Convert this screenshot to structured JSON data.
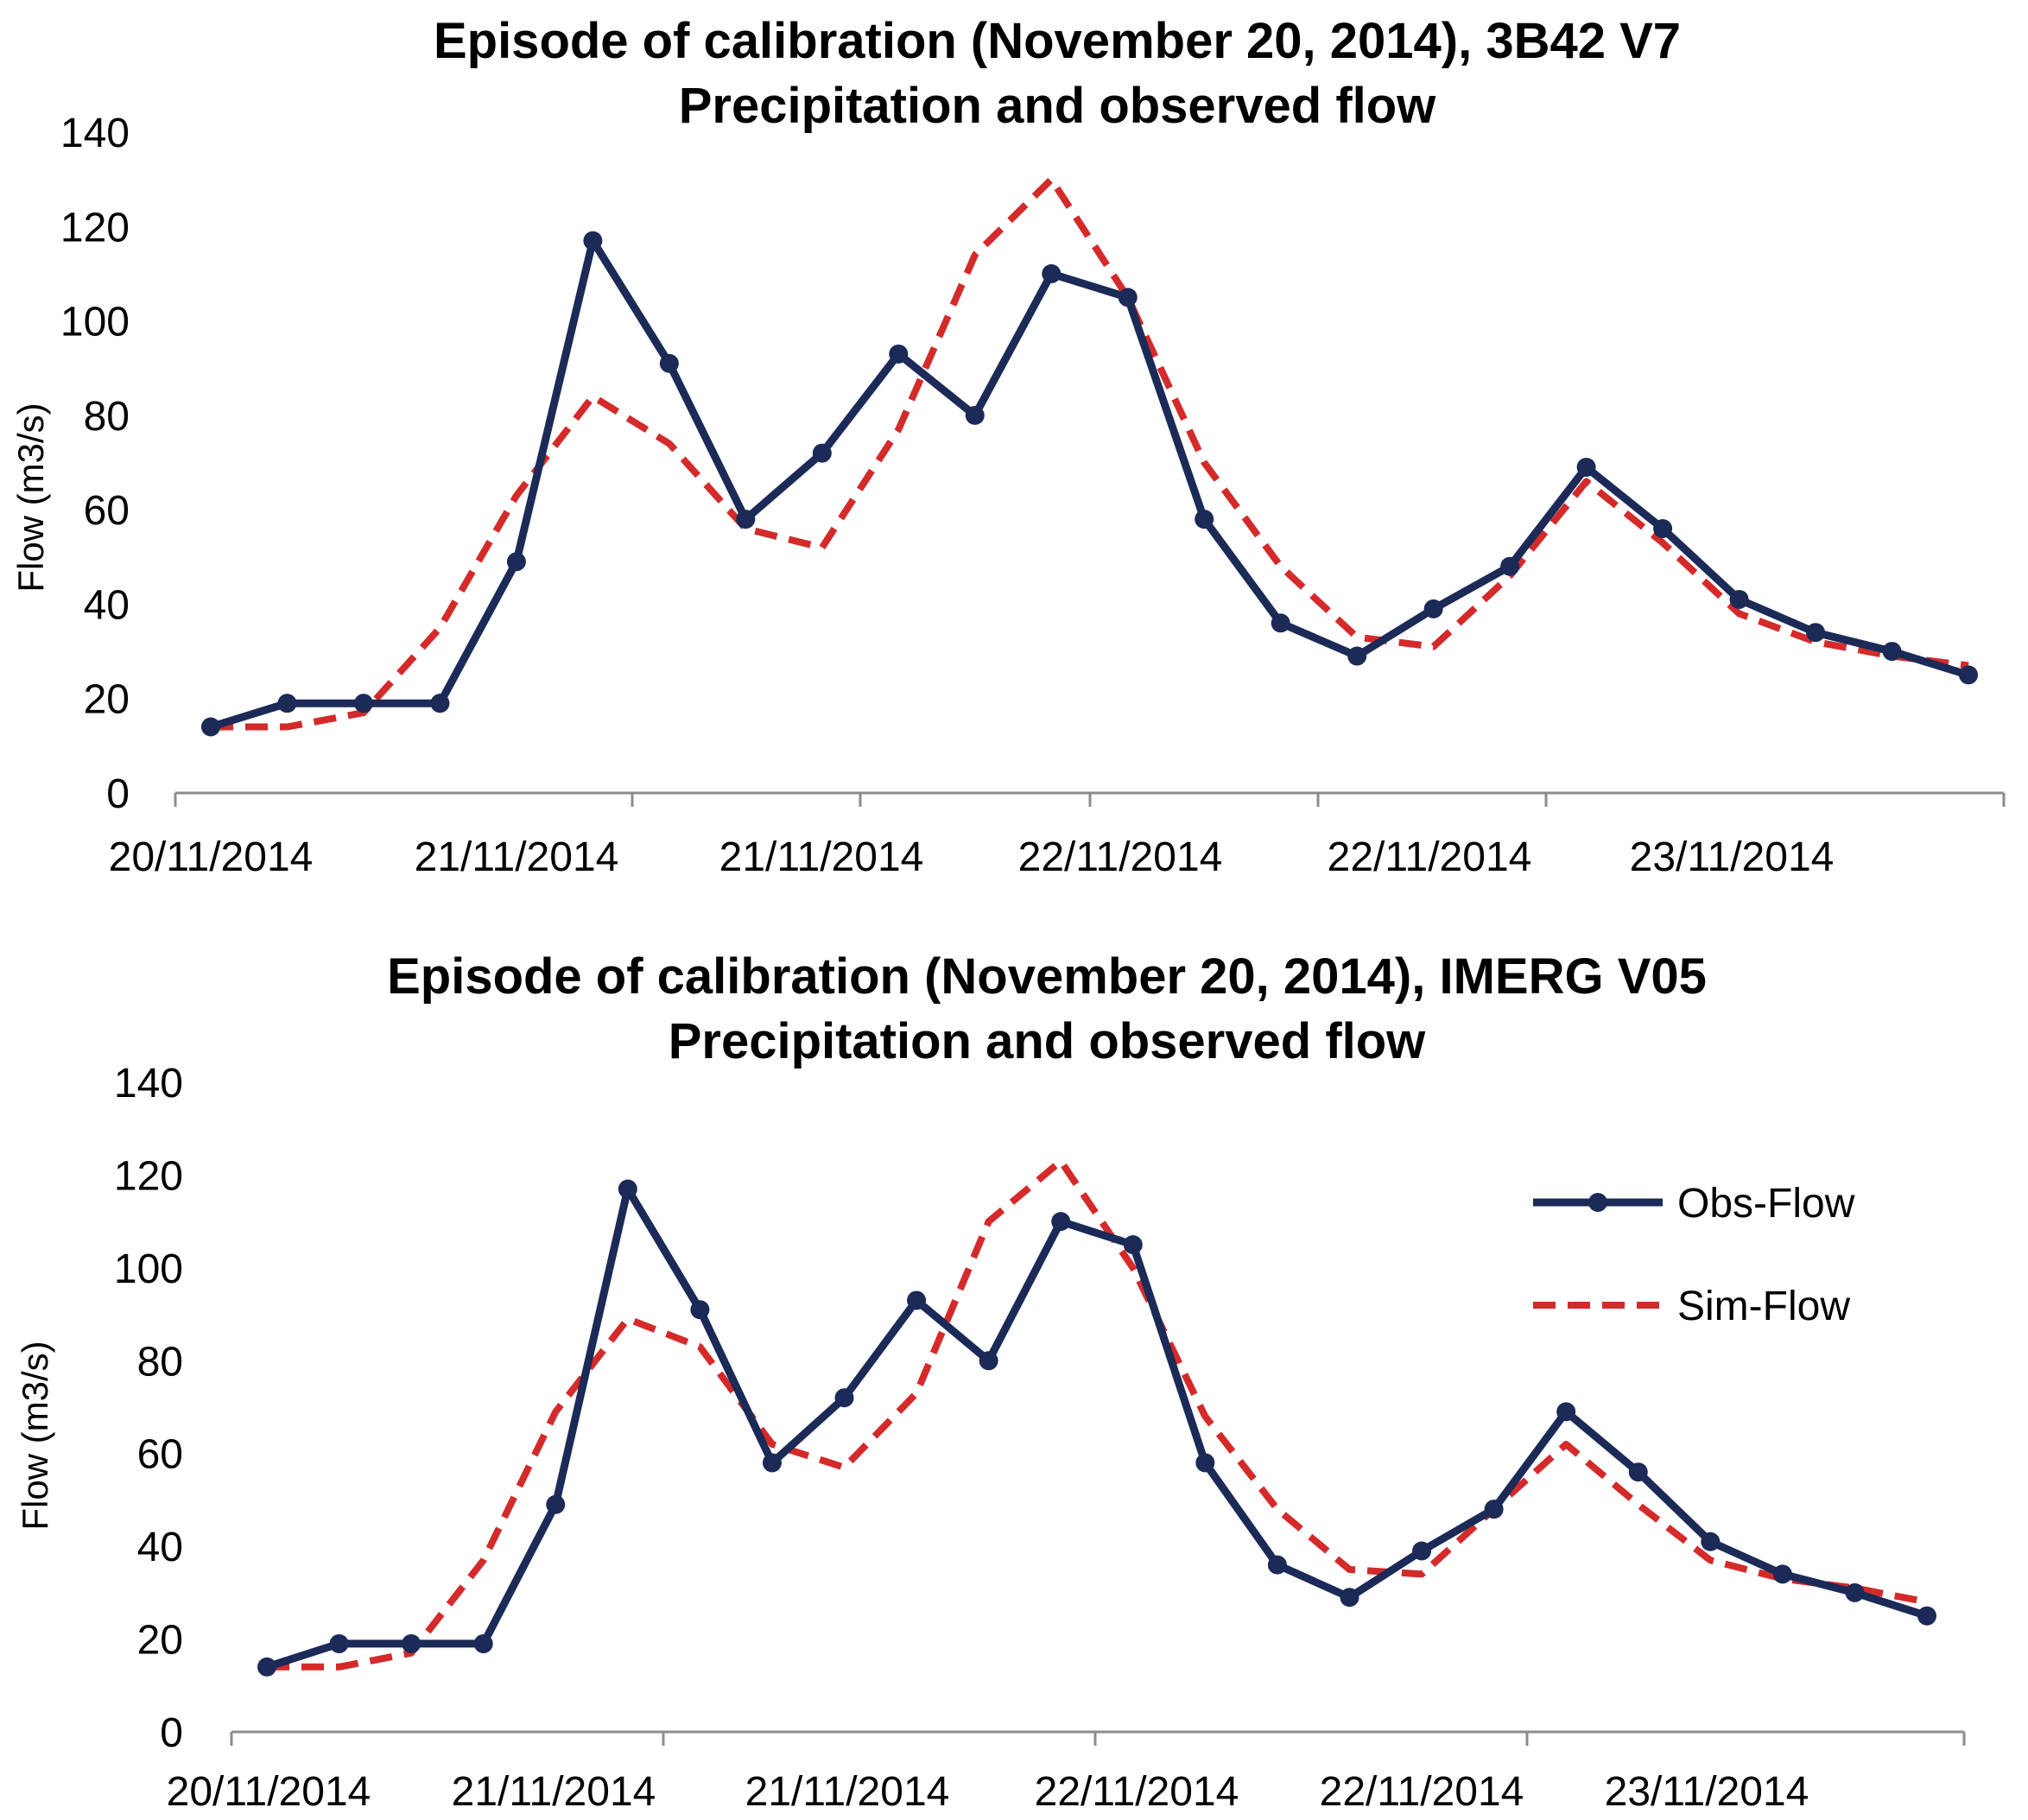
{
  "chart_data": [
    {
      "type": "line",
      "title_line1": "Episode of calibration (November 20, 2014), 3B42 V7",
      "title_line2": "Precipitation and observed flow",
      "xlabel": "",
      "ylabel": "Flow (m3/s)",
      "ylim": [
        0,
        140
      ],
      "yticks": [
        "0",
        "20",
        "40",
        "60",
        "80",
        "100",
        "120",
        "140"
      ],
      "x_tick_labels": [
        "20/11/2014",
        "21/11/2014",
        "21/11/2014",
        "22/11/2014",
        "22/11/2014",
        "23/11/2014"
      ],
      "grid": false,
      "series": [
        {
          "name": "Obs-Flow",
          "color": "#1b2a57",
          "style": "solid-markers",
          "values": [
            14,
            19,
            19,
            19,
            49,
            117,
            91,
            58,
            72,
            93,
            80,
            110,
            105,
            58,
            36,
            29,
            39,
            48,
            69,
            56,
            41,
            34,
            30,
            25
          ]
        },
        {
          "name": "Sim-Flow",
          "color": "#d42a2a",
          "style": "dashed",
          "values": [
            14,
            14,
            17,
            35,
            63,
            84,
            74,
            56,
            52,
            77,
            114,
            130,
            105,
            70,
            48,
            33,
            31,
            46,
            66,
            53,
            38,
            32,
            29,
            27
          ]
        }
      ]
    },
    {
      "type": "line",
      "title_line1": "Episode of calibration (November 20, 2014), IMERG V05",
      "title_line2": "Precipitation and observed flow",
      "xlabel": "",
      "ylabel": "Flow (m3/s)",
      "ylim": [
        0,
        140
      ],
      "yticks": [
        "0",
        "20",
        "40",
        "60",
        "80",
        "100",
        "120",
        "140"
      ],
      "x_tick_labels": [
        "20/11/2014",
        "21/11/2014",
        "21/11/2014",
        "22/11/2014",
        "22/11/2014",
        "23/11/2014"
      ],
      "grid": false,
      "legend_position": "top-right",
      "series": [
        {
          "name": "Obs-Flow",
          "color": "#1b2a57",
          "style": "solid-markers",
          "values": [
            14,
            19,
            19,
            19,
            49,
            117,
            91,
            58,
            72,
            93,
            80,
            110,
            105,
            58,
            36,
            29,
            39,
            48,
            69,
            56,
            41,
            34,
            30,
            25
          ]
        },
        {
          "name": "Sim-Flow",
          "color": "#d42a2a",
          "style": "dashed",
          "values": [
            14,
            14,
            17,
            37,
            69,
            89,
            83,
            62,
            57,
            73,
            110,
            123,
            100,
            68,
            48,
            35,
            34,
            48,
            62,
            49,
            37,
            33,
            31,
            28
          ]
        }
      ]
    }
  ],
  "legend": {
    "obs_label": "Obs-Flow",
    "sim_label": "Sim-Flow"
  }
}
